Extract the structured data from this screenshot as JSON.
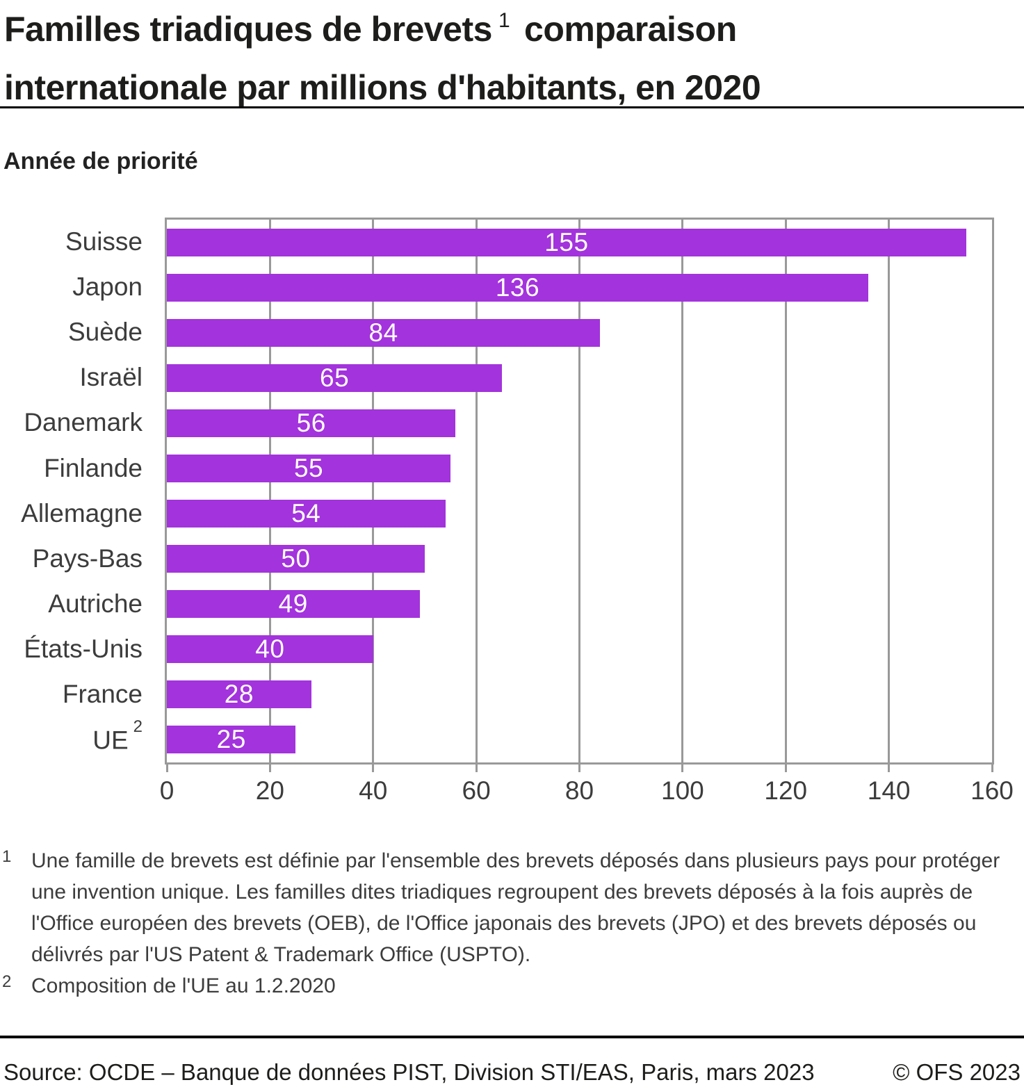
{
  "header": {
    "title_pre": "Familles triadiques de brevets",
    "title_sup": "1",
    "title_post": " comparaison\ninternationale par millions d'habitants, en 2020",
    "subtitle": "Année de priorité"
  },
  "chart_data": {
    "type": "bar",
    "orientation": "horizontal",
    "categories": [
      "Suisse",
      "Japon",
      "Suède",
      "Israël",
      "Danemark",
      "Finlande",
      "Allemagne",
      "Pays-Bas",
      "Autriche",
      "États-Unis",
      "France",
      "UE"
    ],
    "category_sups": [
      "",
      "",
      "",
      "",
      "",
      "",
      "",
      "",
      "",
      "",
      "",
      "2"
    ],
    "values": [
      155,
      136,
      84,
      65,
      56,
      55,
      54,
      50,
      49,
      40,
      28,
      25
    ],
    "title": "Familles triadiques de brevets, comparaison internationale par millions d'habitants, en 2020",
    "xlabel": "",
    "ylabel": "Année de priorité",
    "xlim": [
      0,
      160
    ],
    "xticks": [
      0,
      20,
      40,
      60,
      80,
      100,
      120,
      140,
      160
    ],
    "grid": true,
    "legend": "none",
    "colors": {
      "bar": "#a333dc",
      "grid": "#999999",
      "value_label": "#ffffff"
    }
  },
  "footnotes": [
    {
      "marker": "1",
      "text": "Une famille de brevets est définie par l'ensemble des brevets déposés dans plusieurs pays pour protéger une invention unique. Les familles dites triadiques regroupent des brevets déposés à la fois auprès de l'Office européen des brevets (OEB), de l'Office japonais des brevets (JPO) et des brevets déposés ou délivrés par l'US Patent & Trademark Office (USPTO)."
    },
    {
      "marker": "2",
      "text": "Composition de l'UE au 1.2.2020"
    }
  ],
  "footer": {
    "source": "Source: OCDE – Banque de données PIST, Division STI/EAS, Paris, mars 2023",
    "copyright": "© OFS 2023"
  }
}
